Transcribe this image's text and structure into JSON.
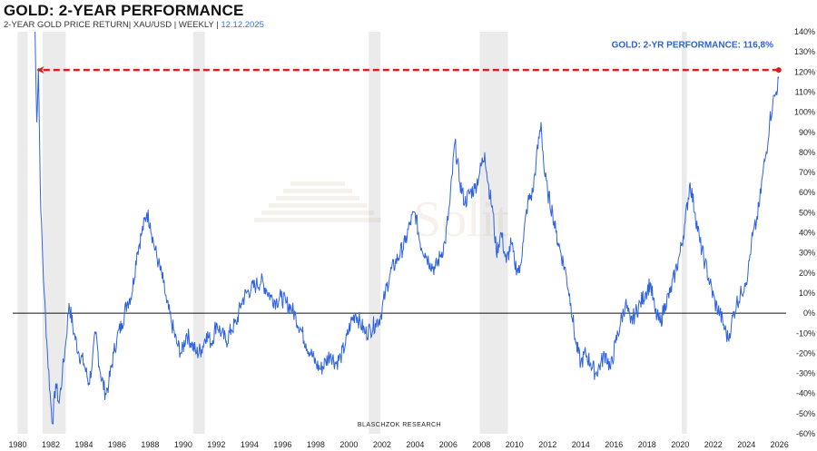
{
  "header": {
    "title": "GOLD: 2-YEAR PERFORMANCE",
    "subtitle": "2-YEAR GOLD PRICE RETURN| XAU/USD | WEEKLY |",
    "date": "12.12.2025"
  },
  "credit": "BLASCHZOK  RESEARCH",
  "watermark_logo": "Solit",
  "colors": {
    "line": "#2f63e0",
    "arrow": "#d62020",
    "recession": "#ebebeb",
    "annotation": "#2c63d8"
  },
  "chart_data": {
    "type": "line",
    "title": "GOLD: 2-YEAR PERFORMANCE",
    "xlabel": "",
    "ylabel": "",
    "xlim": [
      1979.7,
      2026.4
    ],
    "ylim": [
      -60,
      140
    ],
    "x_ticks": [
      "1980",
      "1982",
      "1984",
      "1986",
      "1988",
      "1990",
      "1992",
      "1994",
      "1996",
      "1998",
      "2000",
      "2002",
      "2004",
      "2006",
      "2008",
      "2010",
      "2012",
      "2014",
      "2016",
      "2018",
      "2020",
      "2022",
      "2024",
      "2026"
    ],
    "y_ticks": [
      "-60%",
      "-50%",
      "-40%",
      "-30%",
      "-20%",
      "-10%",
      "0%",
      "10%",
      "20%",
      "30%",
      "40%",
      "50%",
      "60%",
      "70%",
      "80%",
      "90%",
      "100%",
      "110%",
      "120%",
      "130%",
      "140%"
    ],
    "recession_bands": [
      [
        1980.0,
        1980.6
      ],
      [
        1981.5,
        1982.9
      ],
      [
        1990.6,
        1991.3
      ],
      [
        2001.2,
        2001.9
      ],
      [
        2007.9,
        2009.6
      ],
      [
        2020.1,
        2020.4
      ]
    ],
    "series": [
      {
        "name": "2-Year Gold Price Return (%)",
        "points": [
          [
            1981.05,
            140
          ],
          [
            1981.15,
            95
          ],
          [
            1981.25,
            122
          ],
          [
            1981.4,
            50
          ],
          [
            1981.6,
            10
          ],
          [
            1981.8,
            -20
          ],
          [
            1982.0,
            -45
          ],
          [
            1982.1,
            -55
          ],
          [
            1982.3,
            -35
          ],
          [
            1982.5,
            -45
          ],
          [
            1982.7,
            -30
          ],
          [
            1982.9,
            -15
          ],
          [
            1983.1,
            5
          ],
          [
            1983.4,
            -10
          ],
          [
            1983.7,
            -20
          ],
          [
            1984.0,
            -25
          ],
          [
            1984.3,
            -35
          ],
          [
            1984.5,
            -25
          ],
          [
            1984.7,
            -10
          ],
          [
            1985.0,
            -30
          ],
          [
            1985.3,
            -40
          ],
          [
            1985.5,
            -35
          ],
          [
            1985.8,
            -20
          ],
          [
            1986.0,
            -12
          ],
          [
            1986.3,
            -5
          ],
          [
            1986.6,
            5
          ],
          [
            1986.9,
            10
          ],
          [
            1987.2,
            30
          ],
          [
            1987.5,
            40
          ],
          [
            1987.8,
            50
          ],
          [
            1988.0,
            45
          ],
          [
            1988.2,
            35
          ],
          [
            1988.5,
            25
          ],
          [
            1988.8,
            15
          ],
          [
            1989.0,
            5
          ],
          [
            1989.3,
            -5
          ],
          [
            1989.6,
            -15
          ],
          [
            1989.9,
            -20
          ],
          [
            1990.2,
            -10
          ],
          [
            1990.5,
            -15
          ],
          [
            1990.8,
            -20
          ],
          [
            1991.1,
            -18
          ],
          [
            1991.4,
            -10
          ],
          [
            1991.7,
            -15
          ],
          [
            1992.0,
            -5
          ],
          [
            1992.3,
            -10
          ],
          [
            1992.6,
            -14
          ],
          [
            1992.9,
            -8
          ],
          [
            1993.2,
            -5
          ],
          [
            1993.5,
            5
          ],
          [
            1993.8,
            10
          ],
          [
            1994.1,
            12
          ],
          [
            1994.4,
            14
          ],
          [
            1994.7,
            16
          ],
          [
            1995.0,
            12
          ],
          [
            1995.3,
            8
          ],
          [
            1995.6,
            6
          ],
          [
            1995.9,
            8
          ],
          [
            1996.2,
            5
          ],
          [
            1996.5,
            3
          ],
          [
            1996.8,
            -2
          ],
          [
            1997.1,
            -8
          ],
          [
            1997.4,
            -15
          ],
          [
            1997.7,
            -20
          ],
          [
            1998.0,
            -25
          ],
          [
            1998.3,
            -28
          ],
          [
            1998.6,
            -24
          ],
          [
            1998.9,
            -20
          ],
          [
            1999.2,
            -25
          ],
          [
            1999.5,
            -22
          ],
          [
            1999.8,
            -15
          ],
          [
            2000.1,
            -5
          ],
          [
            2000.4,
            0
          ],
          [
            2000.7,
            -5
          ],
          [
            2001.0,
            -10
          ],
          [
            2001.3,
            -8
          ],
          [
            2001.6,
            -5
          ],
          [
            2001.9,
            -2
          ],
          [
            2002.2,
            10
          ],
          [
            2002.5,
            20
          ],
          [
            2002.8,
            25
          ],
          [
            2003.1,
            30
          ],
          [
            2003.4,
            35
          ],
          [
            2003.7,
            45
          ],
          [
            2004.0,
            50
          ],
          [
            2004.3,
            35
          ],
          [
            2004.6,
            30
          ],
          [
            2004.9,
            25
          ],
          [
            2005.2,
            22
          ],
          [
            2005.5,
            28
          ],
          [
            2005.8,
            35
          ],
          [
            2006.1,
            55
          ],
          [
            2006.4,
            85
          ],
          [
            2006.7,
            65
          ],
          [
            2007.0,
            55
          ],
          [
            2007.3,
            60
          ],
          [
            2007.6,
            62
          ],
          [
            2007.9,
            70
          ],
          [
            2008.2,
            80
          ],
          [
            2008.4,
            65
          ],
          [
            2008.7,
            50
          ],
          [
            2008.9,
            30
          ],
          [
            2009.2,
            40
          ],
          [
            2009.5,
            25
          ],
          [
            2009.8,
            35
          ],
          [
            2010.0,
            25
          ],
          [
            2010.3,
            20
          ],
          [
            2010.5,
            35
          ],
          [
            2010.8,
            55
          ],
          [
            2011.1,
            60
          ],
          [
            2011.3,
            75
          ],
          [
            2011.6,
            95
          ],
          [
            2011.8,
            70
          ],
          [
            2012.0,
            60
          ],
          [
            2012.3,
            50
          ],
          [
            2012.5,
            40
          ],
          [
            2012.8,
            30
          ],
          [
            2013.1,
            20
          ],
          [
            2013.4,
            5
          ],
          [
            2013.7,
            -15
          ],
          [
            2014.0,
            -25
          ],
          [
            2014.3,
            -20
          ],
          [
            2014.6,
            -25
          ],
          [
            2014.9,
            -30
          ],
          [
            2015.2,
            -25
          ],
          [
            2015.5,
            -20
          ],
          [
            2015.8,
            -28
          ],
          [
            2016.1,
            -15
          ],
          [
            2016.4,
            -5
          ],
          [
            2016.7,
            5
          ],
          [
            2017.0,
            -5
          ],
          [
            2017.3,
            0
          ],
          [
            2017.6,
            5
          ],
          [
            2017.9,
            10
          ],
          [
            2018.2,
            15
          ],
          [
            2018.5,
            0
          ],
          [
            2018.8,
            -5
          ],
          [
            2019.1,
            5
          ],
          [
            2019.4,
            10
          ],
          [
            2019.7,
            20
          ],
          [
            2020.0,
            30
          ],
          [
            2020.3,
            45
          ],
          [
            2020.6,
            65
          ],
          [
            2020.9,
            50
          ],
          [
            2021.2,
            35
          ],
          [
            2021.5,
            25
          ],
          [
            2021.8,
            15
          ],
          [
            2022.1,
            5
          ],
          [
            2022.4,
            0
          ],
          [
            2022.7,
            -8
          ],
          [
            2022.9,
            -13
          ],
          [
            2023.1,
            -5
          ],
          [
            2023.4,
            5
          ],
          [
            2023.7,
            10
          ],
          [
            2023.9,
            15
          ],
          [
            2024.1,
            20
          ],
          [
            2024.3,
            35
          ],
          [
            2024.6,
            45
          ],
          [
            2024.8,
            55
          ],
          [
            2025.0,
            70
          ],
          [
            2025.2,
            80
          ],
          [
            2025.4,
            95
          ],
          [
            2025.6,
            105
          ],
          [
            2025.8,
            110
          ],
          [
            2025.95,
            116.8
          ]
        ]
      }
    ],
    "annotations": [
      {
        "text": "GOLD: 2-YR PERFORMANCE: 116,8%",
        "x": 2025.95,
        "y": 116.8
      },
      {
        "type": "arrow",
        "from": [
          2025.95,
          121
        ],
        "to": [
          1981.2,
          121
        ]
      }
    ]
  }
}
